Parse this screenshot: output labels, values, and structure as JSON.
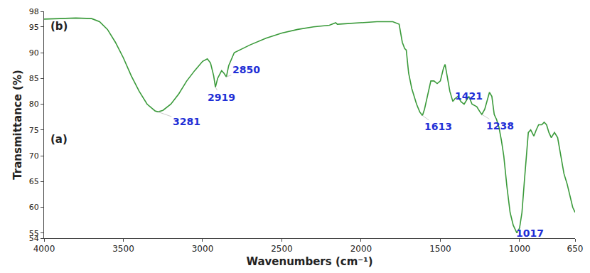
{
  "chart_data": {
    "type": "line",
    "x_label": "Wavenumbers (cm⁻¹)",
    "y_label": "Transmittance (%)",
    "color": "#3a9a3a",
    "xlim": [
      4000,
      650
    ],
    "xticks": [
      4000,
      3500,
      3000,
      2500,
      2000,
      1500,
      1000,
      650
    ],
    "ylim": [
      54,
      98
    ],
    "yticks": [
      54,
      55,
      60,
      65,
      70,
      75,
      80,
      85,
      90,
      95,
      98
    ],
    "grid": false,
    "panel_labels": [
      "(b)",
      "(a)"
    ],
    "annotations": [
      {
        "text": "3281",
        "x": 3281,
        "y": 78.5
      },
      {
        "text": "2919",
        "x": 2919,
        "y": 83.3
      },
      {
        "text": "2850",
        "x": 2850,
        "y": 85.3
      },
      {
        "text": "1613",
        "x": 1613,
        "y": 77.8
      },
      {
        "text": "1421",
        "x": 1421,
        "y": 80.5
      },
      {
        "text": "1238",
        "x": 1238,
        "y": 78
      },
      {
        "text": "1017",
        "x": 1017,
        "y": 55
      }
    ],
    "x": [
      4000,
      3900,
      3800,
      3700,
      3650,
      3600,
      3550,
      3500,
      3450,
      3400,
      3350,
      3300,
      3281,
      3250,
      3200,
      3150,
      3100,
      3050,
      3000,
      2970,
      2950,
      2930,
      2919,
      2905,
      2880,
      2865,
      2850,
      2835,
      2800,
      2700,
      2600,
      2500,
      2400,
      2300,
      2200,
      2160,
      2150,
      2100,
      2000,
      1900,
      1800,
      1760,
      1740,
      1725,
      1715,
      1700,
      1680,
      1650,
      1630,
      1613,
      1600,
      1580,
      1560,
      1540,
      1520,
      1500,
      1480,
      1470,
      1455,
      1440,
      1421,
      1410,
      1390,
      1370,
      1350,
      1320,
      1300,
      1270,
      1250,
      1238,
      1220,
      1200,
      1190,
      1175,
      1160,
      1145,
      1130,
      1115,
      1100,
      1080,
      1060,
      1040,
      1017,
      1000,
      985,
      970,
      955,
      945,
      930,
      910,
      895,
      880,
      860,
      845,
      830,
      815,
      800,
      780,
      760,
      740,
      720,
      700,
      680,
      665,
      650
    ],
    "values": [
      96.5,
      96.6,
      96.7,
      96.6,
      96,
      94.5,
      92,
      89,
      85.5,
      82.5,
      80,
      78.7,
      78.5,
      78.8,
      80,
      82,
      84.5,
      86.5,
      88.3,
      88.8,
      88,
      85.5,
      83.3,
      85,
      86.5,
      86,
      85.3,
      87.5,
      90,
      91.5,
      92.8,
      93.8,
      94.5,
      95,
      95.3,
      95.8,
      95.5,
      95.6,
      95.8,
      96,
      96,
      95.5,
      92,
      90.8,
      90.5,
      86,
      83,
      80,
      78.5,
      77.8,
      79,
      82,
      84.5,
      84.5,
      84,
      84.5,
      87,
      87.7,
      85,
      82.5,
      80.5,
      81,
      81.5,
      80.5,
      80,
      81.5,
      80,
      79.5,
      78.5,
      78,
      79,
      81,
      82.3,
      81.5,
      78,
      77,
      75.5,
      73,
      70,
      64,
      59,
      56.5,
      55,
      56,
      59,
      65,
      71,
      74.5,
      75,
      73.8,
      75,
      76,
      76,
      76.5,
      76,
      74.5,
      73.5,
      74.5,
      73.5,
      70,
      66.5,
      64.5,
      62,
      60,
      59
    ]
  }
}
